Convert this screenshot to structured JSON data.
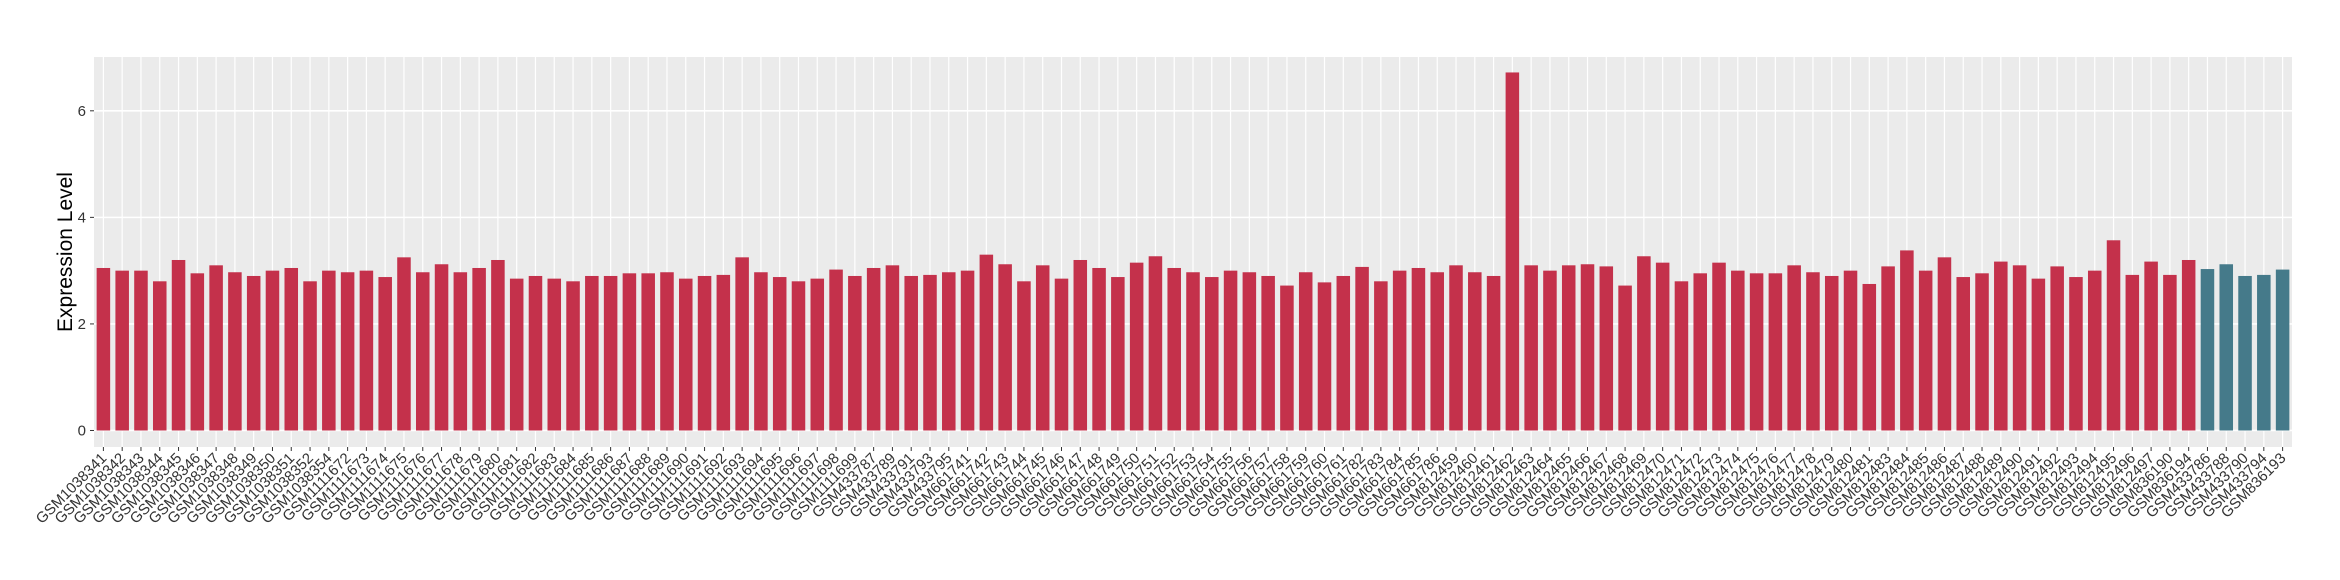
{
  "chart_data": {
    "type": "bar",
    "y_label": "Expression Level",
    "categories": [
      "GSM1038341",
      "GSM1038342",
      "GSM1038343",
      "GSM1038344",
      "GSM1038345",
      "GSM1038346",
      "GSM1038347",
      "GSM1038348",
      "GSM1038349",
      "GSM1038350",
      "GSM1038351",
      "GSM1038352",
      "GSM1038354",
      "GSM1111672",
      "GSM1111673",
      "GSM1111674",
      "GSM1111675",
      "GSM1111676",
      "GSM1111677",
      "GSM1111678",
      "GSM1111679",
      "GSM1111680",
      "GSM1111681",
      "GSM1111682",
      "GSM1111683",
      "GSM1111684",
      "GSM1111685",
      "GSM1111686",
      "GSM1111687",
      "GSM1111688",
      "GSM1111689",
      "GSM1111690",
      "GSM1111691",
      "GSM1111692",
      "GSM1111693",
      "GSM1111694",
      "GSM1111695",
      "GSM1111696",
      "GSM1111697",
      "GSM1111698",
      "GSM1111699",
      "GSM433787",
      "GSM433789",
      "GSM433791",
      "GSM433793",
      "GSM433795",
      "GSM661741",
      "GSM661742",
      "GSM661743",
      "GSM661744",
      "GSM661745",
      "GSM661746",
      "GSM661747",
      "GSM661748",
      "GSM661749",
      "GSM661750",
      "GSM661751",
      "GSM661752",
      "GSM661753",
      "GSM661754",
      "GSM661755",
      "GSM661756",
      "GSM661757",
      "GSM661758",
      "GSM661759",
      "GSM661760",
      "GSM661761",
      "GSM661782",
      "GSM661783",
      "GSM661784",
      "GSM661785",
      "GSM661786",
      "GSM812459",
      "GSM812460",
      "GSM812461",
      "GSM812462",
      "GSM812463",
      "GSM812464",
      "GSM812465",
      "GSM812466",
      "GSM812467",
      "GSM812468",
      "GSM812469",
      "GSM812470",
      "GSM812471",
      "GSM812472",
      "GSM812473",
      "GSM812474",
      "GSM812475",
      "GSM812476",
      "GSM812477",
      "GSM812478",
      "GSM812479",
      "GSM812480",
      "GSM812481",
      "GSM812483",
      "GSM812484",
      "GSM812485",
      "GSM812486",
      "GSM812487",
      "GSM812488",
      "GSM812489",
      "GSM812490",
      "GSM812491",
      "GSM812492",
      "GSM812493",
      "GSM812494",
      "GSM812495",
      "GSM812496",
      "GSM812497",
      "GSM836190",
      "GSM836194",
      "GSM433786",
      "GSM433788",
      "GSM433790",
      "GSM433794",
      "GSM836193"
    ],
    "values": [
      3.05,
      3.0,
      3.0,
      2.8,
      3.2,
      2.95,
      3.1,
      2.97,
      2.9,
      3.0,
      3.05,
      2.8,
      3.0,
      2.97,
      3.0,
      2.88,
      3.25,
      2.97,
      3.12,
      2.97,
      3.05,
      3.2,
      2.85,
      2.9,
      2.85,
      2.8,
      2.9,
      2.9,
      2.95,
      2.95,
      2.97,
      2.85,
      2.9,
      2.92,
      3.25,
      2.97,
      2.88,
      2.8,
      2.85,
      3.02,
      2.9,
      3.05,
      3.1,
      2.9,
      2.92,
      2.97,
      3.0,
      3.3,
      3.12,
      2.8,
      3.1,
      2.85,
      3.2,
      3.05,
      2.88,
      3.15,
      3.27,
      3.05,
      2.97,
      2.88,
      3.0,
      2.97,
      2.9,
      2.72,
      2.97,
      2.78,
      2.9,
      3.07,
      2.8,
      3.0,
      3.05,
      2.97,
      3.1,
      2.97,
      2.9,
      6.72,
      3.1,
      3.0,
      3.1,
      3.12,
      3.08,
      2.72,
      3.27,
      3.15,
      2.8,
      2.95,
      3.15,
      3.0,
      2.95,
      2.95,
      3.1,
      2.97,
      2.9,
      3.0,
      2.75,
      3.08,
      3.38,
      3.0,
      3.25,
      2.88,
      2.95,
      3.17,
      3.1,
      2.85,
      3.08,
      2.88,
      3.0,
      3.57,
      2.92,
      3.17,
      2.92,
      3.2,
      3.03,
      3.12,
      2.9,
      2.92,
      3.02
    ],
    "colors": [
      "#c4314b",
      "#c4314b",
      "#c4314b",
      "#c4314b",
      "#c4314b",
      "#c4314b",
      "#c4314b",
      "#c4314b",
      "#c4314b",
      "#c4314b",
      "#c4314b",
      "#c4314b",
      "#c4314b",
      "#c4314b",
      "#c4314b",
      "#c4314b",
      "#c4314b",
      "#c4314b",
      "#c4314b",
      "#c4314b",
      "#c4314b",
      "#c4314b",
      "#c4314b",
      "#c4314b",
      "#c4314b",
      "#c4314b",
      "#c4314b",
      "#c4314b",
      "#c4314b",
      "#c4314b",
      "#c4314b",
      "#c4314b",
      "#c4314b",
      "#c4314b",
      "#c4314b",
      "#c4314b",
      "#c4314b",
      "#c4314b",
      "#c4314b",
      "#c4314b",
      "#c4314b",
      "#c4314b",
      "#c4314b",
      "#c4314b",
      "#c4314b",
      "#c4314b",
      "#c4314b",
      "#c4314b",
      "#c4314b",
      "#c4314b",
      "#c4314b",
      "#c4314b",
      "#c4314b",
      "#c4314b",
      "#c4314b",
      "#c4314b",
      "#c4314b",
      "#c4314b",
      "#c4314b",
      "#c4314b",
      "#c4314b",
      "#c4314b",
      "#c4314b",
      "#c4314b",
      "#c4314b",
      "#c4314b",
      "#c4314b",
      "#c4314b",
      "#c4314b",
      "#c4314b",
      "#c4314b",
      "#c4314b",
      "#c4314b",
      "#c4314b",
      "#c4314b",
      "#c4314b",
      "#c4314b",
      "#c4314b",
      "#c4314b",
      "#c4314b",
      "#c4314b",
      "#c4314b",
      "#c4314b",
      "#c4314b",
      "#c4314b",
      "#c4314b",
      "#c4314b",
      "#c4314b",
      "#c4314b",
      "#c4314b",
      "#c4314b",
      "#c4314b",
      "#c4314b",
      "#c4314b",
      "#c4314b",
      "#c4314b",
      "#c4314b",
      "#c4314b",
      "#c4314b",
      "#c4314b",
      "#c4314b",
      "#c4314b",
      "#c4314b",
      "#c4314b",
      "#c4314b",
      "#c4314b",
      "#c4314b",
      "#c4314b",
      "#c4314b",
      "#c4314b",
      "#c4314b",
      "#c4314b",
      "#457a8a",
      "#457a8a",
      "#457a8a",
      "#457a8a",
      "#457a8a"
    ],
    "ylim": [
      -0.31,
      7.01
    ],
    "yticks": [
      0,
      2,
      4,
      6
    ],
    "grid": true
  }
}
